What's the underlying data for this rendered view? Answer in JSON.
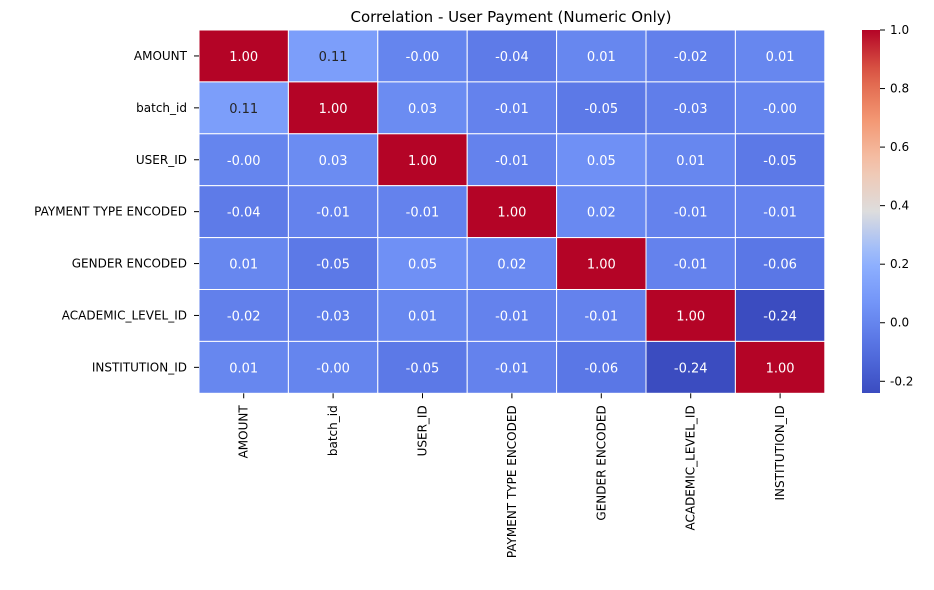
{
  "chart_data": {
    "type": "heatmap",
    "title": "Correlation - User Payment (Numeric Only)",
    "xlabel": "",
    "ylabel": "",
    "labels": [
      "AMOUNT",
      "batch_id",
      "USER_ID",
      "PAYMENT TYPE ENCODED",
      "GENDER ENCODED",
      "ACADEMIC_LEVEL_ID",
      "INSTITUTION_ID"
    ],
    "matrix": [
      [
        1.0,
        0.11,
        -0.0,
        -0.04,
        0.01,
        -0.02,
        0.01
      ],
      [
        0.11,
        1.0,
        0.03,
        -0.01,
        -0.05,
        -0.03,
        -0.0
      ],
      [
        -0.0,
        0.03,
        1.0,
        -0.01,
        0.05,
        0.01,
        -0.05
      ],
      [
        -0.04,
        -0.01,
        -0.01,
        1.0,
        0.02,
        -0.01,
        -0.01
      ],
      [
        0.01,
        -0.05,
        0.05,
        0.02,
        1.0,
        -0.01,
        -0.06
      ],
      [
        -0.02,
        -0.03,
        0.01,
        -0.01,
        -0.01,
        1.0,
        -0.24
      ],
      [
        0.01,
        -0.0,
        -0.05,
        -0.01,
        -0.06,
        -0.24,
        1.0
      ]
    ],
    "annotations": [
      [
        "1.00",
        "0.11",
        "-0.00",
        "-0.04",
        "0.01",
        "-0.02",
        "0.01"
      ],
      [
        "0.11",
        "1.00",
        "0.03",
        "-0.01",
        "-0.05",
        "-0.03",
        "-0.00"
      ],
      [
        "-0.00",
        "0.03",
        "1.00",
        "-0.01",
        "0.05",
        "0.01",
        "-0.05"
      ],
      [
        "-0.04",
        "-0.01",
        "-0.01",
        "1.00",
        "0.02",
        "-0.01",
        "-0.01"
      ],
      [
        "0.01",
        "-0.05",
        "0.05",
        "0.02",
        "1.00",
        "-0.01",
        "-0.06"
      ],
      [
        "-0.02",
        "-0.03",
        "0.01",
        "-0.01",
        "-0.01",
        "1.00",
        "-0.24"
      ],
      [
        "0.01",
        "-0.00",
        "-0.05",
        "-0.01",
        "-0.06",
        "-0.24",
        "1.00"
      ]
    ],
    "colormap": "coolwarm",
    "vmin": -0.24,
    "vmax": 1.0,
    "colorbar_ticks": [
      "-0.2",
      "0.0",
      "0.2",
      "0.4",
      "0.6",
      "0.8",
      "1.0"
    ],
    "colorbar_tick_values": [
      -0.2,
      0.0,
      0.2,
      0.4,
      0.6,
      0.8,
      1.0
    ],
    "grid_color": "#ffffff"
  }
}
